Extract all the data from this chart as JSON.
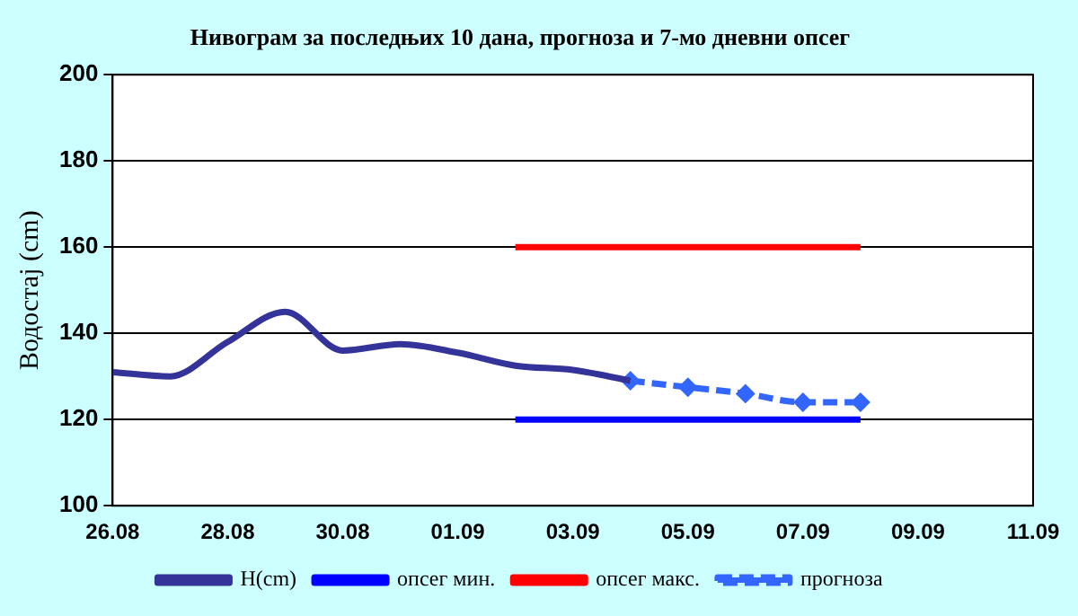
{
  "chart_data": {
    "type": "line",
    "title": "Нивограм за последњих 10 дана, прогноза и 7-мо дневни опсег",
    "ylabel": "Водостај (cm)",
    "xlim": [
      "--08-26",
      "--09-11"
    ],
    "xticks": [
      {
        "value": "--08-26",
        "label": "26.08"
      },
      {
        "value": "--08-28",
        "label": "28.08"
      },
      {
        "value": "--08-30",
        "label": "30.08"
      },
      {
        "value": "--09-01",
        "label": "01.09"
      },
      {
        "value": "--09-03",
        "label": "03.09"
      },
      {
        "value": "--09-05",
        "label": "05.09"
      },
      {
        "value": "--09-07",
        "label": "07.09"
      },
      {
        "value": "--09-09",
        "label": "09.09"
      },
      {
        "value": "--09-11",
        "label": "11.09"
      }
    ],
    "ylim": [
      100,
      200
    ],
    "yticks": [
      100,
      120,
      140,
      160,
      180,
      200
    ],
    "grid": "y",
    "legend": "bottom",
    "series": [
      {
        "name": "H(cm)",
        "color": "#333399",
        "marker": "none",
        "line_style": "solid",
        "x": [
          "--08-26",
          "--08-27",
          "--08-28",
          "--08-29",
          "--08-30",
          "--08-31",
          "--09-01",
          "--09-02",
          "--09-03",
          "--09-04"
        ],
        "values": [
          131,
          130,
          138,
          145,
          136,
          137.5,
          135.5,
          132.5,
          131.5,
          129
        ]
      },
      {
        "name": "опсег мин.",
        "color": "#0000ff",
        "marker": "none",
        "line_style": "solid",
        "x": [
          "--09-02",
          "--09-08"
        ],
        "values": [
          120,
          120
        ]
      },
      {
        "name": "опсег макс.",
        "color": "#ff0000",
        "marker": "none",
        "line_style": "solid",
        "x": [
          "--09-02",
          "--09-08"
        ],
        "values": [
          160,
          160
        ]
      },
      {
        "name": "прогноза",
        "color": "#3366ff",
        "marker": "diamond",
        "line_style": "dashed",
        "x": [
          "--09-04",
          "--09-05",
          "--09-06",
          "--09-07",
          "--09-08"
        ],
        "values": [
          129,
          127.5,
          126,
          124,
          124
        ]
      }
    ]
  }
}
